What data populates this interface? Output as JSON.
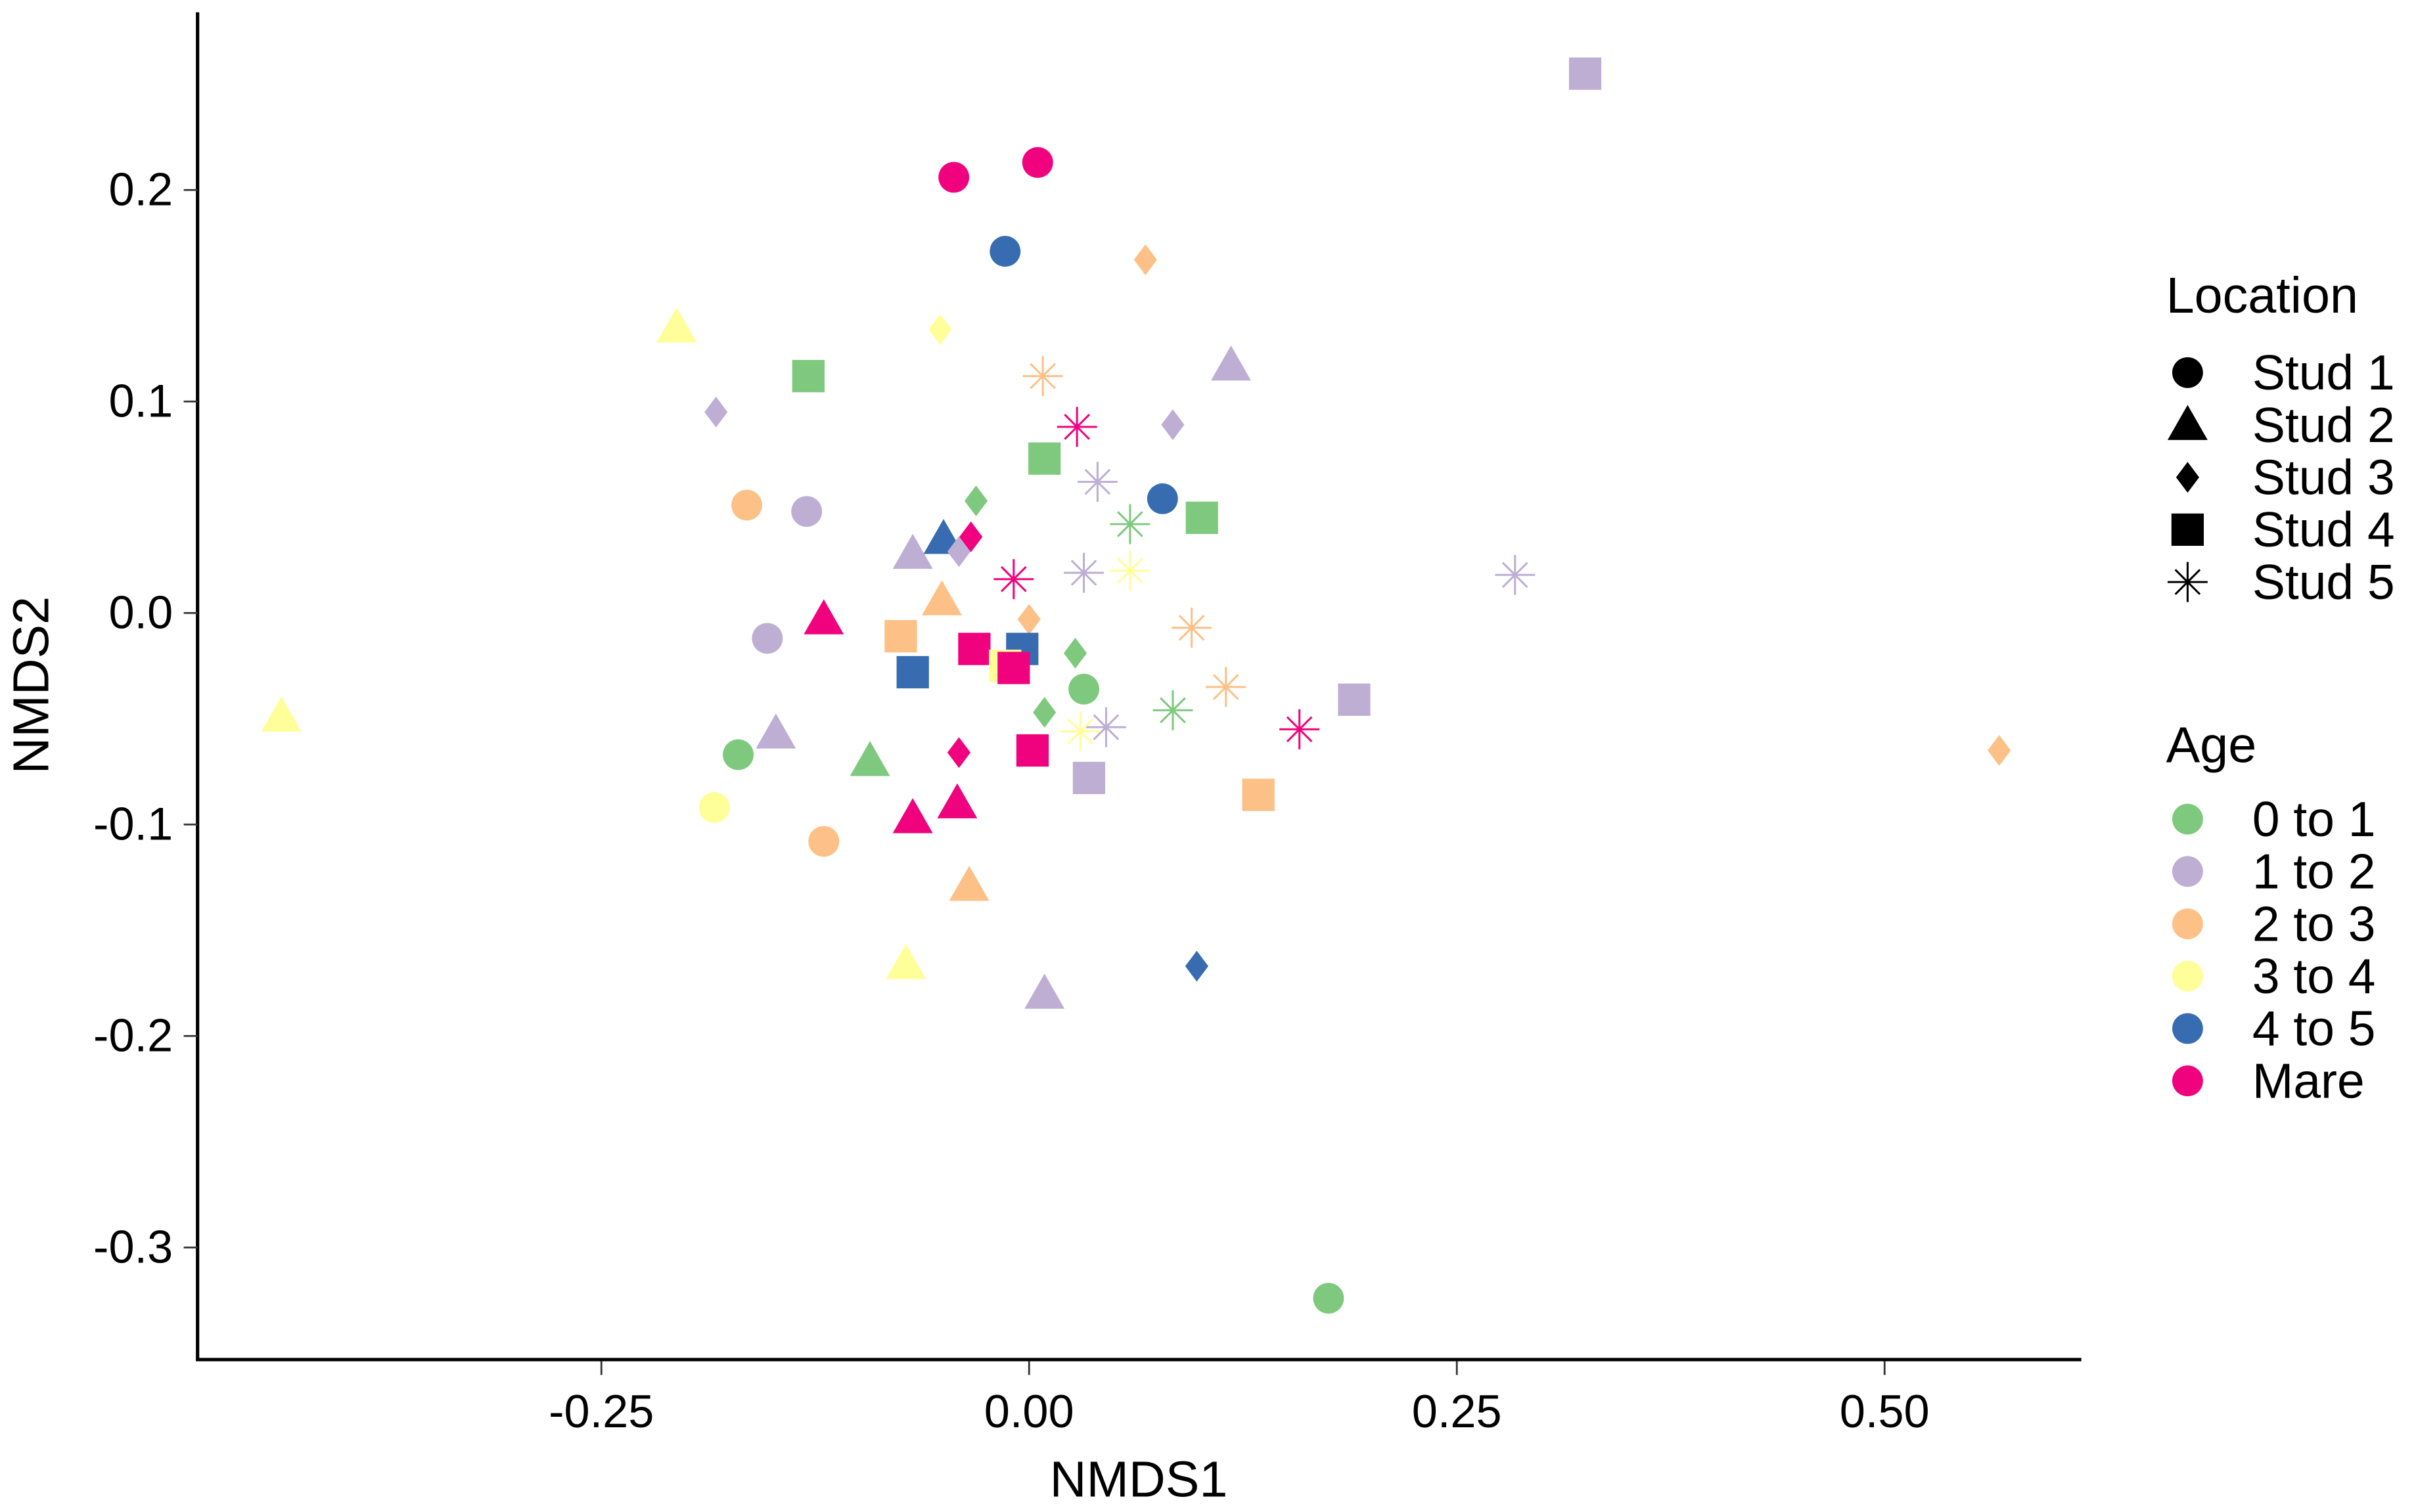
{
  "chart_data": {
    "type": "scatter",
    "xlabel": "NMDS1",
    "ylabel": "NMDS2",
    "xlim": [
      -0.486,
      0.615
    ],
    "ylim": [
      -0.353,
      0.284
    ],
    "xticks": [
      "-0.25",
      "0.00",
      "0.25",
      "0.50"
    ],
    "xtick_values": [
      -0.25,
      0,
      0.25,
      0.5
    ],
    "yticks": [
      "0.2",
      "0.1",
      "0.0",
      "-0.1",
      "-0.2",
      "-0.3"
    ],
    "ytick_values": [
      0.2,
      0.1,
      0,
      -0.1,
      -0.2,
      -0.3
    ],
    "grid": false,
    "legend_placement": "right",
    "legends": {
      "shape": {
        "title": "Location",
        "items": [
          {
            "label": "Stud 1",
            "shape": "circle"
          },
          {
            "label": "Stud 2",
            "shape": "triangle"
          },
          {
            "label": "Stud 3",
            "shape": "diamond"
          },
          {
            "label": "Stud 4",
            "shape": "square"
          },
          {
            "label": "Stud 5",
            "shape": "asterisk"
          }
        ]
      },
      "color": {
        "title": "Age",
        "items": [
          {
            "label": "0 to 1",
            "color": "#7fc97f"
          },
          {
            "label": "1 to 2",
            "color": "#beaed4"
          },
          {
            "label": "2 to 3",
            "color": "#fdc086"
          },
          {
            "label": "3 to 4",
            "color": "#ffff99"
          },
          {
            "label": "4 to 5",
            "color": "#386cb0"
          },
          {
            "label": "Mare",
            "color": "#f0027f"
          }
        ]
      }
    },
    "points": [
      {
        "location": "Stud 1",
        "age": "Mare",
        "x": -0.044,
        "y": 0.206
      },
      {
        "location": "Stud 1",
        "age": "Mare",
        "x": 0.005,
        "y": 0.213
      },
      {
        "location": "Stud 1",
        "age": "4 to 5",
        "x": -0.014,
        "y": 0.171
      },
      {
        "location": "Stud 1",
        "age": "2 to 3",
        "x": -0.165,
        "y": 0.051
      },
      {
        "location": "Stud 1",
        "age": "1 to 2",
        "x": -0.13,
        "y": 0.048
      },
      {
        "location": "Stud 1",
        "age": "4 to 5",
        "x": 0.078,
        "y": 0.054
      },
      {
        "location": "Stud 1",
        "age": "1 to 2",
        "x": -0.153,
        "y": -0.012
      },
      {
        "location": "Stud 1",
        "age": "0 to 1",
        "x": 0.032,
        "y": -0.036
      },
      {
        "location": "Stud 1",
        "age": "0 to 1",
        "x": -0.17,
        "y": -0.067
      },
      {
        "location": "Stud 1",
        "age": "3 to 4",
        "x": -0.184,
        "y": -0.092
      },
      {
        "location": "Stud 1",
        "age": "2 to 3",
        "x": -0.12,
        "y": -0.108
      },
      {
        "location": "Stud 1",
        "age": "0 to 1",
        "x": 0.175,
        "y": -0.324
      },
      {
        "location": "Stud 2",
        "age": "3 to 4",
        "x": -0.206,
        "y": 0.135
      },
      {
        "location": "Stud 2",
        "age": "1 to 2",
        "x": 0.118,
        "y": 0.117
      },
      {
        "location": "Stud 2",
        "age": "1 to 2",
        "x": -0.068,
        "y": 0.028
      },
      {
        "location": "Stud 2",
        "age": "4 to 5",
        "x": -0.05,
        "y": 0.035
      },
      {
        "location": "Stud 2",
        "age": "2 to 3",
        "x": -0.051,
        "y": 0.006
      },
      {
        "location": "Stud 2",
        "age": "Mare",
        "x": -0.12,
        "y": -0.003
      },
      {
        "location": "Stud 2",
        "age": "3 to 4",
        "x": -0.437,
        "y": -0.049
      },
      {
        "location": "Stud 2",
        "age": "1 to 2",
        "x": -0.148,
        "y": -0.057
      },
      {
        "location": "Stud 2",
        "age": "0 to 1",
        "x": -0.093,
        "y": -0.07
      },
      {
        "location": "Stud 2",
        "age": "Mare",
        "x": -0.042,
        "y": -0.09
      },
      {
        "location": "Stud 2",
        "age": "Mare",
        "x": -0.068,
        "y": -0.097
      },
      {
        "location": "Stud 2",
        "age": "2 to 3",
        "x": -0.035,
        "y": -0.129
      },
      {
        "location": "Stud 2",
        "age": "3 to 4",
        "x": -0.072,
        "y": -0.166
      },
      {
        "location": "Stud 2",
        "age": "1 to 2",
        "x": 0.009,
        "y": -0.18
      },
      {
        "location": "Stud 3",
        "age": "2 to 3",
        "x": 0.068,
        "y": 0.167
      },
      {
        "location": "Stud 3",
        "age": "3 to 4",
        "x": -0.052,
        "y": 0.134
      },
      {
        "location": "Stud 3",
        "age": "1 to 2",
        "x": -0.183,
        "y": 0.095
      },
      {
        "location": "Stud 3",
        "age": "1 to 2",
        "x": 0.084,
        "y": 0.089
      },
      {
        "location": "Stud 3",
        "age": "0 to 1",
        "x": -0.031,
        "y": 0.053
      },
      {
        "location": "Stud 3",
        "age": "1 to 2",
        "x": -0.041,
        "y": 0.029
      },
      {
        "location": "Stud 3",
        "age": "Mare",
        "x": -0.034,
        "y": 0.036
      },
      {
        "location": "Stud 3",
        "age": "2 to 3",
        "x": 0.0,
        "y": -0.003
      },
      {
        "location": "Stud 3",
        "age": "0 to 1",
        "x": 0.027,
        "y": -0.019
      },
      {
        "location": "Stud 3",
        "age": "0 to 1",
        "x": 0.009,
        "y": -0.047
      },
      {
        "location": "Stud 3",
        "age": "Mare",
        "x": -0.041,
        "y": -0.066
      },
      {
        "location": "Stud 3",
        "age": "2 to 3",
        "x": 0.567,
        "y": -0.065
      },
      {
        "location": "Stud 3",
        "age": "4 to 5",
        "x": 0.098,
        "y": -0.167
      },
      {
        "location": "Stud 4",
        "age": "1 to 2",
        "x": 0.325,
        "y": 0.255
      },
      {
        "location": "Stud 4",
        "age": "0 to 1",
        "x": -0.129,
        "y": 0.112
      },
      {
        "location": "Stud 4",
        "age": "0 to 1",
        "x": 0.009,
        "y": 0.073
      },
      {
        "location": "Stud 4",
        "age": "0 to 1",
        "x": 0.101,
        "y": 0.045
      },
      {
        "location": "Stud 4",
        "age": "2 to 3",
        "x": -0.075,
        "y": -0.011
      },
      {
        "location": "Stud 4",
        "age": "4 to 5",
        "x": -0.004,
        "y": -0.017
      },
      {
        "location": "Stud 4",
        "age": "Mare",
        "x": -0.032,
        "y": -0.017
      },
      {
        "location": "Stud 4",
        "age": "3 to 4",
        "x": -0.014,
        "y": -0.025
      },
      {
        "location": "Stud 4",
        "age": "Mare",
        "x": -0.009,
        "y": -0.026
      },
      {
        "location": "Stud 4",
        "age": "4 to 5",
        "x": -0.068,
        "y": -0.028
      },
      {
        "location": "Stud 4",
        "age": "Mare",
        "x": 0.002,
        "y": -0.065
      },
      {
        "location": "Stud 4",
        "age": "1 to 2",
        "x": 0.035,
        "y": -0.078
      },
      {
        "location": "Stud 4",
        "age": "1 to 2",
        "x": 0.19,
        "y": -0.041
      },
      {
        "location": "Stud 4",
        "age": "2 to 3",
        "x": 0.134,
        "y": -0.086
      },
      {
        "location": "Stud 5",
        "age": "2 to 3",
        "x": 0.008,
        "y": 0.112
      },
      {
        "location": "Stud 5",
        "age": "Mare",
        "x": 0.028,
        "y": 0.088
      },
      {
        "location": "Stud 5",
        "age": "1 to 2",
        "x": 0.04,
        "y": 0.062
      },
      {
        "location": "Stud 5",
        "age": "0 to 1",
        "x": 0.059,
        "y": 0.042
      },
      {
        "location": "Stud 5",
        "age": "1 to 2",
        "x": 0.032,
        "y": 0.019
      },
      {
        "location": "Stud 5",
        "age": "3 to 4",
        "x": 0.059,
        "y": 0.02
      },
      {
        "location": "Stud 5",
        "age": "Mare",
        "x": -0.009,
        "y": 0.016
      },
      {
        "location": "Stud 5",
        "age": "1 to 2",
        "x": 0.284,
        "y": 0.018
      },
      {
        "location": "Stud 5",
        "age": "2 to 3",
        "x": 0.095,
        "y": -0.007
      },
      {
        "location": "Stud 5",
        "age": "2 to 3",
        "x": 0.115,
        "y": -0.035
      },
      {
        "location": "Stud 5",
        "age": "0 to 1",
        "x": 0.084,
        "y": -0.046
      },
      {
        "location": "Stud 5",
        "age": "1 to 2",
        "x": 0.045,
        "y": -0.054
      },
      {
        "location": "Stud 5",
        "age": "3 to 4",
        "x": 0.03,
        "y": -0.056
      },
      {
        "location": "Stud 5",
        "age": "Mare",
        "x": 0.158,
        "y": -0.055
      }
    ]
  }
}
